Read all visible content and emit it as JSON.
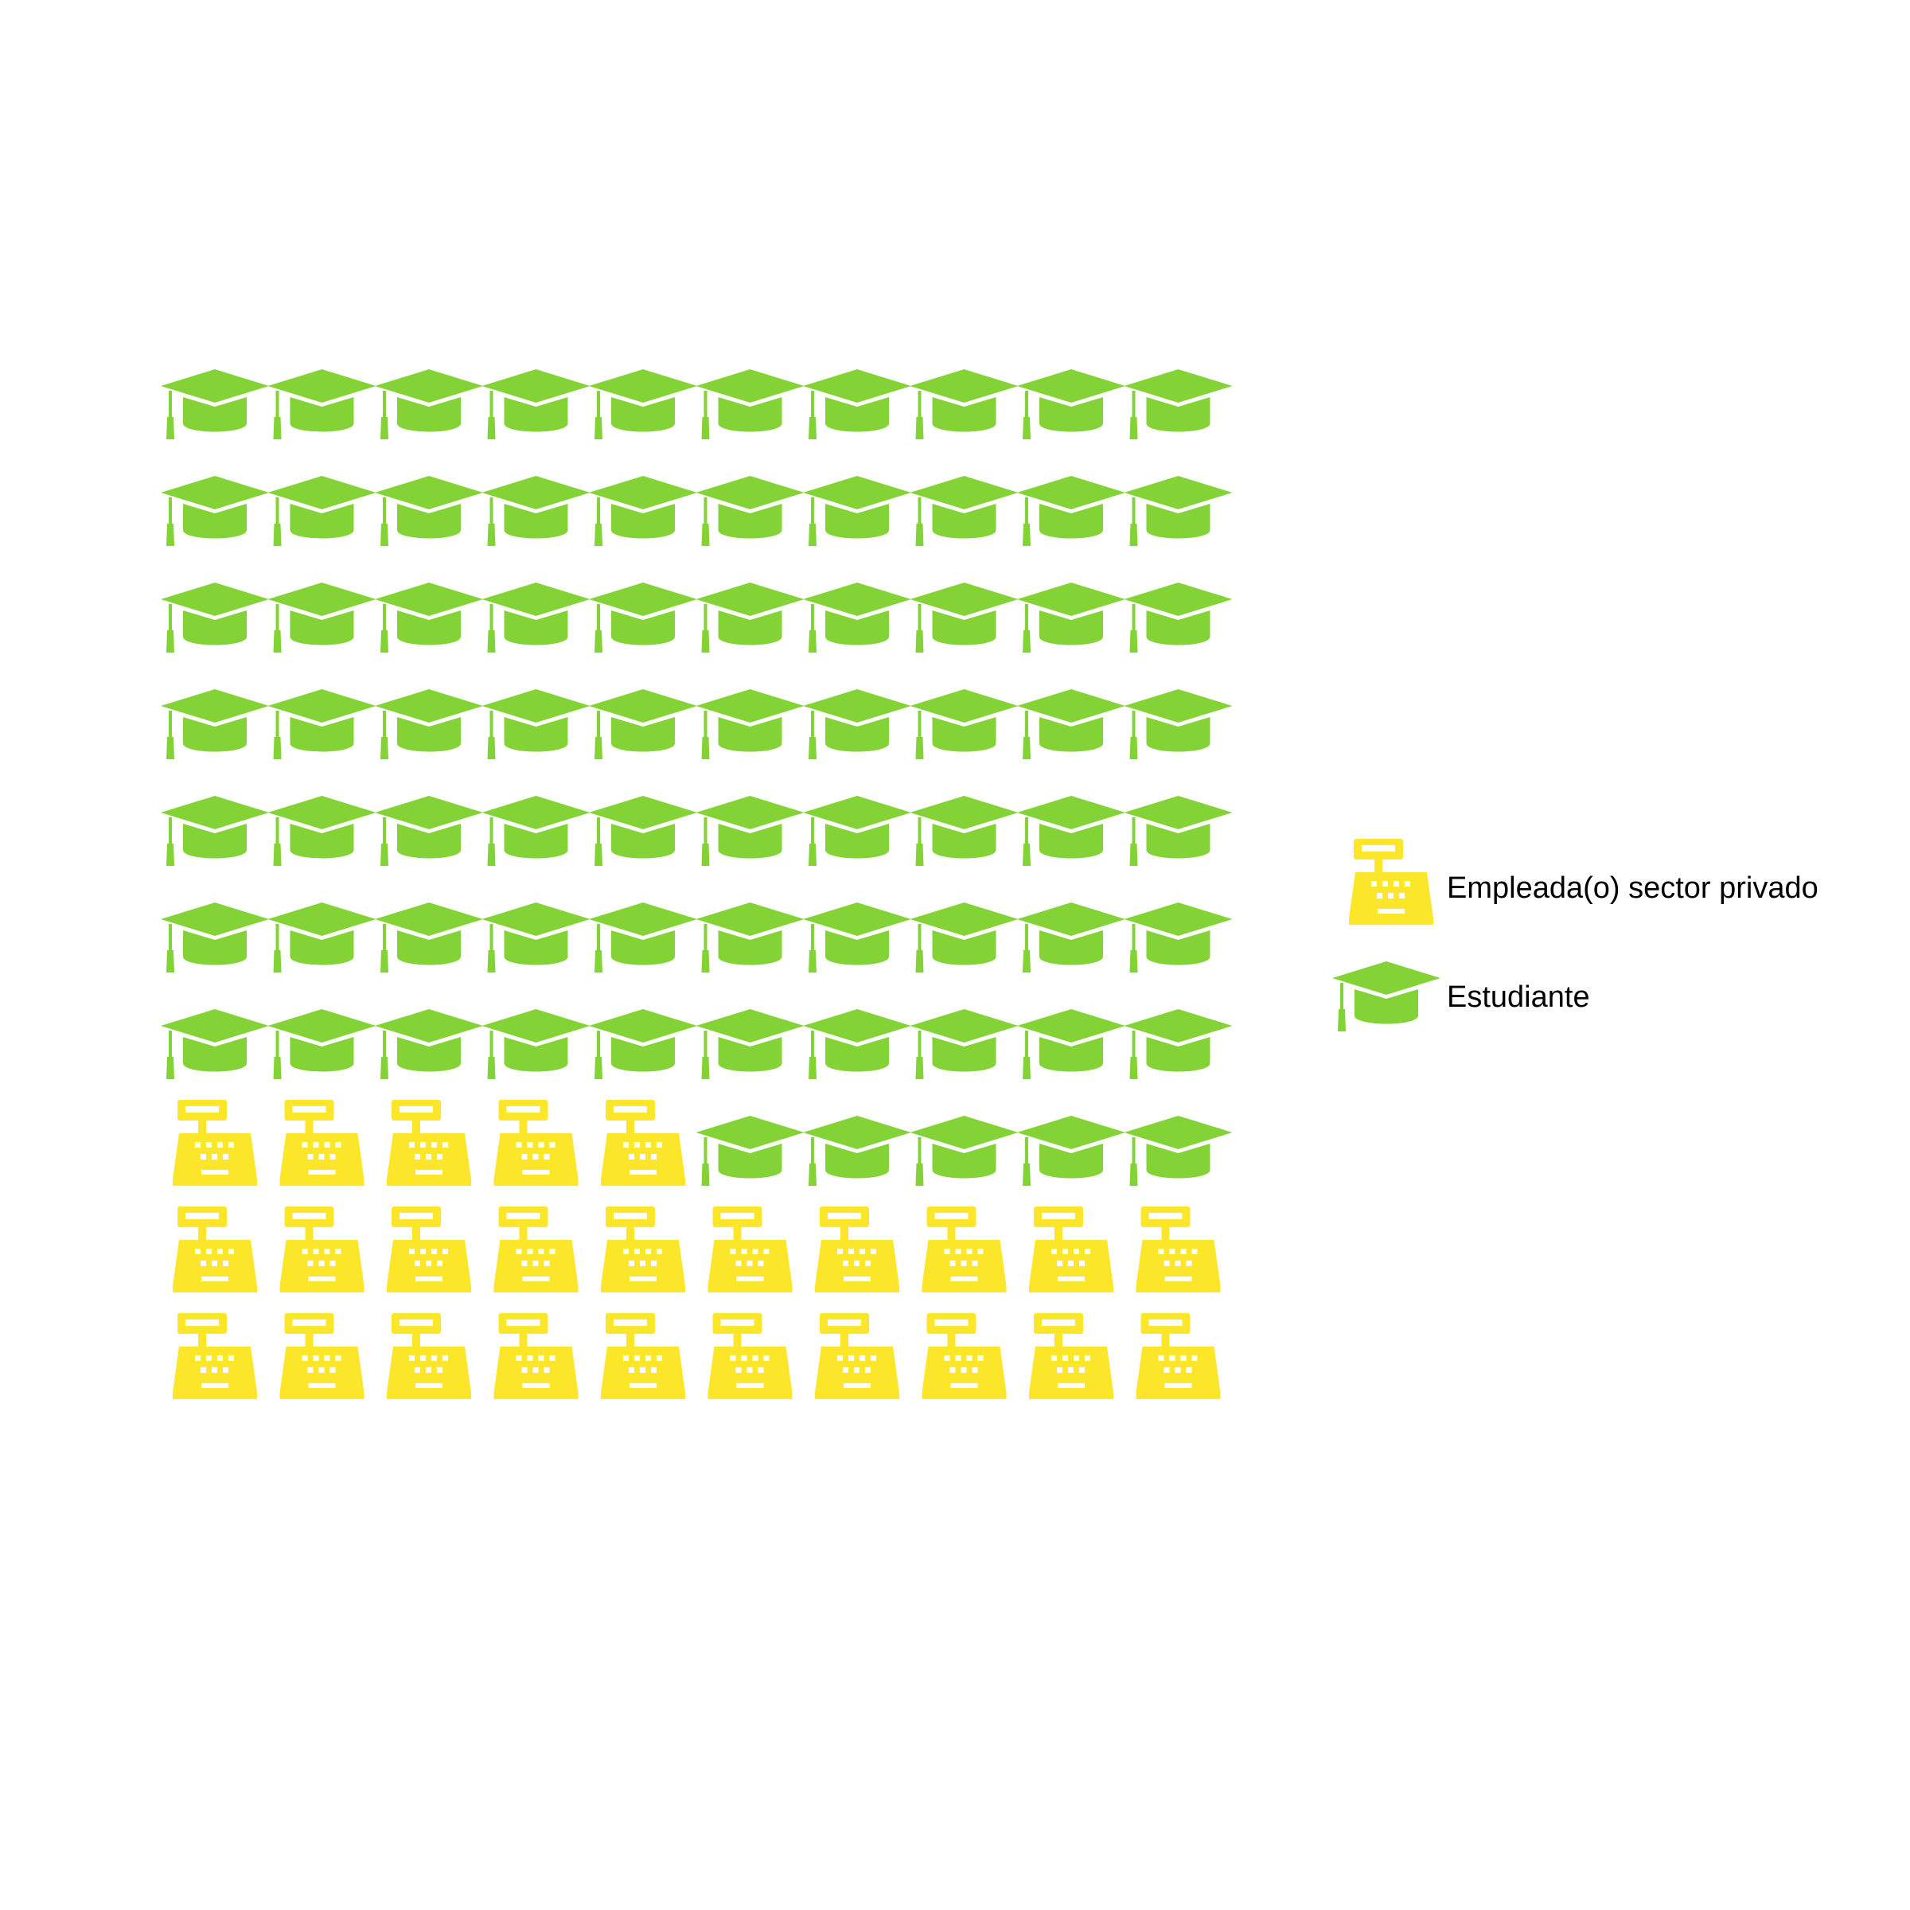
{
  "chart_data": {
    "type": "waffle",
    "grid": {
      "rows": 10,
      "cols": 10,
      "total_icons": 100,
      "fill_order": "bottom-up, left-to-right"
    },
    "series": [
      {
        "name": "Empleada(o) sector privado",
        "value": 25,
        "icon": "cash-register-icon",
        "color": "#FCE62A"
      },
      {
        "name": "Estudiante",
        "value": 75,
        "icon": "graduation-cap-icon",
        "color": "#83D336"
      }
    ],
    "legend": {
      "position": "right"
    }
  }
}
